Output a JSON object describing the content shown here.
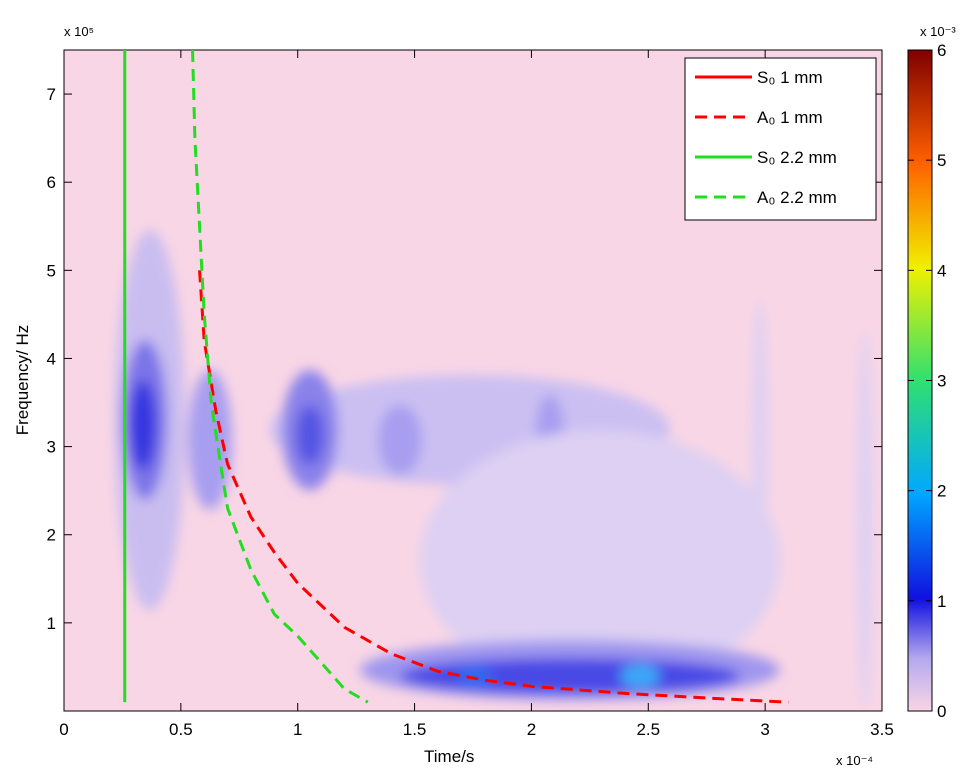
{
  "chart_data": {
    "type": "line",
    "xlabel": "Time/s",
    "ylabel": "Frequency/ Hz",
    "x_multiplier": "x 10⁻⁴",
    "y_multiplier": "x 10⁵",
    "xlim": [
      0,
      3.5
    ],
    "xticks": [
      0,
      0.5,
      1,
      1.5,
      2,
      2.5,
      3,
      3.5
    ],
    "ylim": [
      0,
      7.5
    ],
    "yticks": [
      1,
      2,
      3,
      4,
      5,
      6,
      7
    ],
    "legend_position": "upper right",
    "series": [
      {
        "name": "S₀ 1 mm",
        "color": "#ff0000",
        "dash": false,
        "x": [],
        "values": []
      },
      {
        "name": "A₀ 1 mm",
        "color": "#ff0000",
        "dash": true,
        "x": [
          0.58,
          0.6,
          0.65,
          0.7,
          0.8,
          0.9,
          1.0,
          1.2,
          1.4,
          1.6,
          1.8,
          2.0,
          2.4,
          2.8,
          3.1
        ],
        "values": [
          5.0,
          4.2,
          3.4,
          2.8,
          2.2,
          1.8,
          1.45,
          0.95,
          0.65,
          0.45,
          0.35,
          0.28,
          0.2,
          0.14,
          0.1
        ]
      },
      {
        "name": "S₀ 2.2 mm",
        "color": "#22dd22",
        "dash": false,
        "x": [
          0.26,
          0.26
        ],
        "values": [
          0.1,
          7.5
        ]
      },
      {
        "name": "A₀ 2.2 mm",
        "color": "#22dd22",
        "dash": true,
        "x": [
          0.55,
          0.56,
          0.58,
          0.6,
          0.63,
          0.67,
          0.7,
          0.8,
          0.9,
          1.0,
          1.1,
          1.2,
          1.3
        ],
        "values": [
          7.5,
          6.5,
          5.5,
          4.5,
          3.5,
          2.8,
          2.3,
          1.6,
          1.1,
          0.85,
          0.55,
          0.25,
          0.1
        ]
      }
    ],
    "colorbar": {
      "multiplier": "x 10⁻³",
      "lim": [
        0,
        6
      ],
      "ticks": [
        0,
        1,
        2,
        3,
        4,
        5,
        6
      ]
    }
  }
}
